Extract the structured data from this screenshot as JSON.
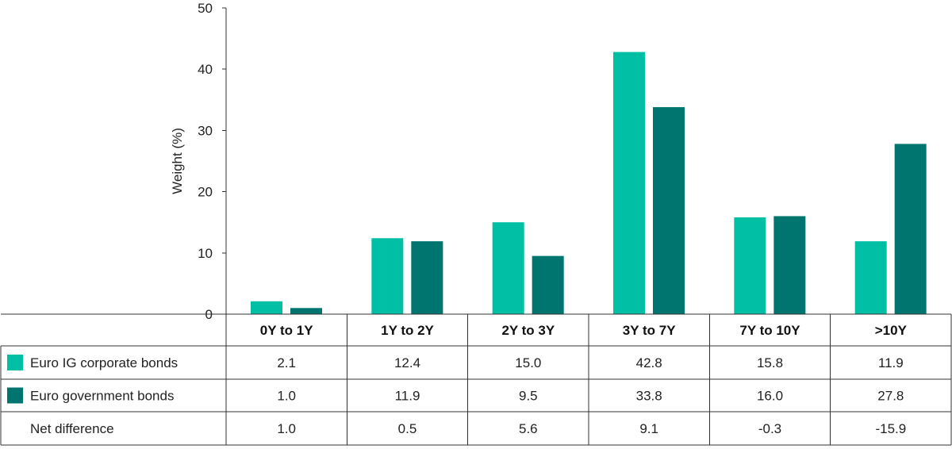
{
  "chart_data": {
    "type": "bar",
    "ylabel": "Weight (%)",
    "ylim": [
      0,
      50
    ],
    "yticks": [
      0,
      10,
      20,
      30,
      40,
      50
    ],
    "categories": [
      "0Y to 1Y",
      "1Y to 2Y",
      "2Y to 3Y",
      "3Y to 7Y",
      "7Y to 10Y",
      ">10Y"
    ],
    "series": [
      {
        "name": "Euro IG corporate bonds",
        "color": "#00bfa5",
        "values": [
          2.1,
          12.4,
          15.0,
          42.8,
          15.8,
          11.9
        ],
        "labels": [
          "2.1",
          "12.4",
          "15.0",
          "42.8",
          "15.8",
          "11.9"
        ]
      },
      {
        "name": "Euro government bonds",
        "color": "#00756f",
        "values": [
          1.0,
          11.9,
          9.5,
          33.8,
          16.0,
          27.8
        ],
        "labels": [
          "1.0",
          "11.9",
          "9.5",
          "33.8",
          "16.0",
          "27.8"
        ]
      }
    ],
    "extra_row": {
      "name": "Net difference",
      "labels": [
        "1.0",
        "0.5",
        "5.6",
        "9.1",
        "-0.3",
        "-15.9"
      ]
    }
  }
}
